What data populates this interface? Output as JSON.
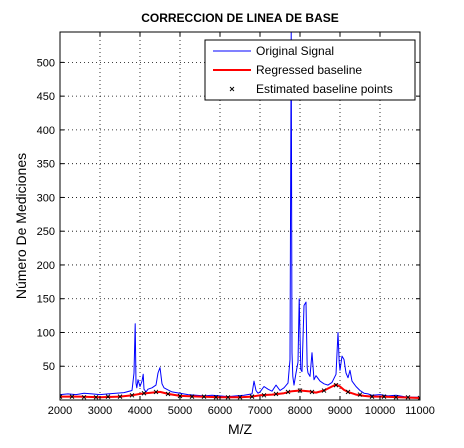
{
  "chart_data": {
    "type": "line",
    "title": "CORRECCION DE LINEA DE BASE",
    "xlabel": "M/Z",
    "ylabel": "Número De Mediciones",
    "xlim": [
      2000,
      11000
    ],
    "ylim": [
      0,
      545
    ],
    "xticks": [
      "2000",
      "3000",
      "4000",
      "5000",
      "6000",
      "7000",
      "8000",
      "9000",
      "10000",
      "11000"
    ],
    "yticks": [
      "50",
      "100",
      "150",
      "200",
      "250",
      "300",
      "350",
      "400",
      "450",
      "500"
    ],
    "xtick_values": [
      2000,
      3000,
      4000,
      5000,
      6000,
      7000,
      8000,
      9000,
      10000,
      11000
    ],
    "ytick_values": [
      50,
      100,
      150,
      200,
      250,
      300,
      350,
      400,
      450,
      500
    ],
    "grid": true,
    "legend_position": "top-right",
    "series": [
      {
        "name": "Original Signal",
        "color": "#0000ff",
        "x": [
          2000,
          2200,
          2400,
          2600,
          2800,
          3000,
          3200,
          3400,
          3600,
          3800,
          3850,
          3880,
          3900,
          3920,
          3950,
          4000,
          4050,
          4080,
          4100,
          4150,
          4200,
          4300,
          4400,
          4450,
          4500,
          4550,
          4600,
          4700,
          4800,
          5000,
          5200,
          5400,
          5600,
          5800,
          6000,
          6200,
          6400,
          6600,
          6800,
          6850,
          6900,
          6950,
          7000,
          7100,
          7200,
          7300,
          7400,
          7500,
          7600,
          7700,
          7750,
          7780,
          7800,
          7820,
          7850,
          7900,
          7950,
          7980,
          8000,
          8020,
          8050,
          8100,
          8150,
          8180,
          8200,
          8250,
          8300,
          8350,
          8400,
          8500,
          8600,
          8700,
          8800,
          8900,
          8950,
          8980,
          9000,
          9050,
          9100,
          9150,
          9200,
          9250,
          9300,
          9350,
          9400,
          9500,
          9600,
          9700,
          9800,
          10000,
          10200,
          10400,
          10600,
          10800,
          11000
        ],
        "y": [
          8,
          9,
          8,
          10,
          9,
          8,
          9,
          10,
          11,
          14,
          40,
          113,
          25,
          18,
          30,
          20,
          28,
          38,
          16,
          12,
          16,
          18,
          22,
          40,
          48,
          24,
          18,
          15,
          12,
          10,
          8,
          7,
          6,
          7,
          6,
          5,
          6,
          7,
          9,
          28,
          14,
          10,
          12,
          20,
          16,
          13,
          22,
          14,
          18,
          25,
          60,
          545,
          70,
          35,
          22,
          40,
          56,
          150,
          98,
          45,
          42,
          140,
          145,
          48,
          40,
          35,
          70,
          30,
          36,
          28,
          24,
          22,
          26,
          38,
          100,
          56,
          44,
          65,
          60,
          40,
          33,
          44,
          28,
          24,
          20,
          14,
          10,
          9,
          7,
          8,
          6,
          7,
          5,
          4,
          4
        ]
      },
      {
        "name": "Regressed baseline",
        "color": "#ff0000",
        "x": [
          2000,
          2500,
          3000,
          3500,
          3800,
          4000,
          4300,
          4500,
          4700,
          5000,
          5500,
          6000,
          6500,
          6800,
          7000,
          7300,
          7600,
          7800,
          8000,
          8200,
          8400,
          8600,
          8800,
          8900,
          9000,
          9100,
          9200,
          9400,
          9600,
          9800,
          10000,
          10500,
          11000
        ],
        "y": [
          5,
          5,
          4,
          5,
          7,
          9,
          11,
          12,
          9,
          6,
          5,
          4,
          4,
          5,
          7,
          8,
          10,
          13,
          14,
          13,
          11,
          14,
          20,
          23,
          20,
          15,
          12,
          8,
          6,
          5,
          5,
          4,
          3
        ]
      },
      {
        "name": "Estimated baseline points",
        "color": "#000000",
        "marker": "x",
        "x": [
          2000,
          2300,
          2600,
          2900,
          3200,
          3500,
          3800,
          4100,
          4400,
          4700,
          5000,
          5300,
          5600,
          5900,
          6200,
          6500,
          6800,
          7100,
          7400,
          7700,
          8000,
          8300,
          8600,
          8900,
          9200,
          9500,
          9800,
          10100,
          10400,
          10700,
          11000
        ],
        "y": [
          5,
          5,
          4,
          4,
          5,
          5,
          7,
          10,
          12,
          9,
          6,
          5,
          5,
          4,
          4,
          4,
          5,
          7,
          9,
          12,
          14,
          12,
          14,
          22,
          12,
          8,
          5,
          5,
          4,
          4,
          3
        ]
      }
    ]
  }
}
